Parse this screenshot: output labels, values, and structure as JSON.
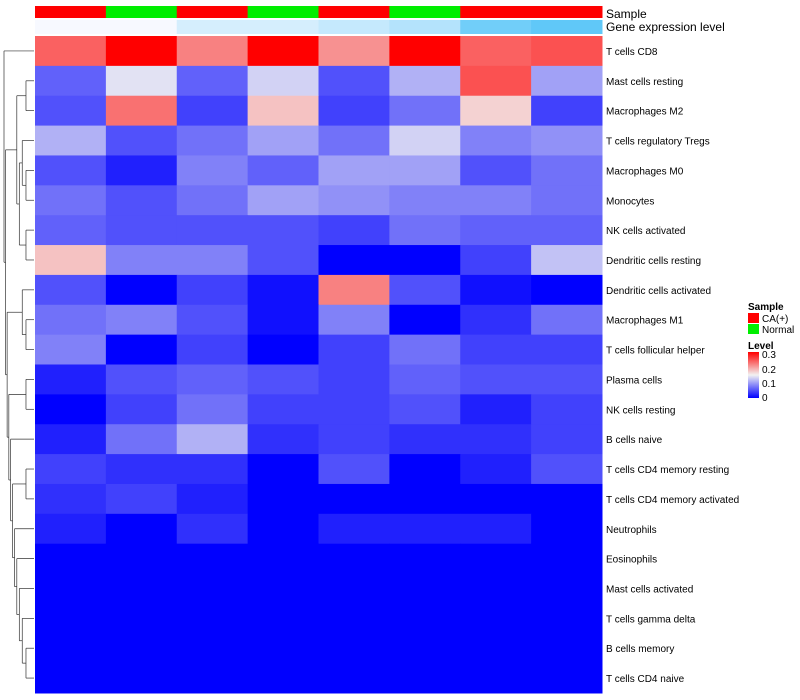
{
  "chart_data": {
    "type": "heatmap",
    "annotation_labels": [
      "Sample",
      "Gene expression level"
    ],
    "sample_groups": [
      "CA(+)",
      "Normal",
      "CA(+)",
      "Normal",
      "CA(+)",
      "Normal",
      "CA(+)",
      "CA(+)"
    ],
    "gene_expression_level": [
      0.0,
      0.0,
      0.2,
      0.2,
      0.3,
      0.4,
      0.8,
      0.9
    ],
    "rows": [
      "T cells CD8",
      "Mast cells resting",
      "Macrophages M2",
      "T cells regulatory  Tregs",
      "Macrophages M0",
      "Monocytes",
      "NK cells activated",
      "Dendritic cells resting",
      "Dendritic cells activated",
      "Macrophages M1",
      "T cells follicular helper",
      "Plasma cells",
      "NK cells resting",
      "B cells naive",
      "T cells CD4 memory resting",
      "T cells CD4 memory activated",
      "Neutrophils",
      "Eosinophils",
      "Mast cells activated",
      "T cells gamma delta",
      "B cells memory",
      "T cells CD4 naive"
    ],
    "values": [
      [
        0.24,
        0.3,
        0.22,
        0.3,
        0.21,
        0.3,
        0.24,
        0.25
      ],
      [
        0.06,
        0.14,
        0.06,
        0.13,
        0.05,
        0.11,
        0.25,
        0.1
      ],
      [
        0.05,
        0.23,
        0.04,
        0.18,
        0.04,
        0.07,
        0.17,
        0.04
      ],
      [
        0.11,
        0.05,
        0.07,
        0.1,
        0.07,
        0.13,
        0.08,
        0.09
      ],
      [
        0.05,
        0.02,
        0.08,
        0.06,
        0.1,
        0.1,
        0.05,
        0.07
      ],
      [
        0.07,
        0.05,
        0.07,
        0.1,
        0.09,
        0.08,
        0.08,
        0.07
      ],
      [
        0.06,
        0.05,
        0.05,
        0.05,
        0.04,
        0.07,
        0.06,
        0.06
      ],
      [
        0.18,
        0.08,
        0.08,
        0.05,
        0.0,
        0.0,
        0.04,
        0.12
      ],
      [
        0.05,
        0.0,
        0.04,
        0.01,
        0.22,
        0.05,
        0.01,
        0.0
      ],
      [
        0.07,
        0.08,
        0.05,
        0.01,
        0.08,
        0.0,
        0.03,
        0.07
      ],
      [
        0.08,
        0.0,
        0.04,
        0.0,
        0.04,
        0.07,
        0.04,
        0.04
      ],
      [
        0.02,
        0.05,
        0.06,
        0.05,
        0.04,
        0.06,
        0.05,
        0.05
      ],
      [
        0.0,
        0.04,
        0.07,
        0.04,
        0.04,
        0.05,
        0.02,
        0.04
      ],
      [
        0.02,
        0.07,
        0.11,
        0.03,
        0.04,
        0.03,
        0.03,
        0.04
      ],
      [
        0.04,
        0.03,
        0.03,
        0.0,
        0.05,
        0.0,
        0.02,
        0.05
      ],
      [
        0.03,
        0.04,
        0.02,
        0.0,
        0.0,
        0.0,
        0.0,
        0.0
      ],
      [
        0.02,
        0.0,
        0.03,
        0.0,
        0.02,
        0.02,
        0.02,
        0.0
      ],
      [
        0.0,
        0.0,
        0.0,
        0.0,
        0.0,
        0.0,
        0.0,
        0.0
      ],
      [
        0.0,
        0.0,
        0.0,
        0.0,
        0.0,
        0.0,
        0.0,
        0.0
      ],
      [
        0.0,
        0.0,
        0.0,
        0.0,
        0.0,
        0.0,
        0.0,
        0.0
      ],
      [
        0.0,
        0.0,
        0.0,
        0.0,
        0.0,
        0.0,
        0.0,
        0.0
      ],
      [
        0.0,
        0.0,
        0.0,
        0.0,
        0.0,
        0.0,
        0.0,
        0.0
      ]
    ],
    "color_scale": {
      "min": 0,
      "mid": 0.15,
      "max": 0.3,
      "low_color": "#0000ff",
      "mid_color": "#f2f2f2",
      "high_color": "#ff0000"
    },
    "legend": {
      "sample_title": "Sample",
      "sample_entries": [
        {
          "label": "CA(+)",
          "color": "#ff0000"
        },
        {
          "label": "Normal",
          "color": "#00ee00"
        }
      ],
      "level_title": "Level",
      "level_ticks": [
        "0.3",
        "0.2",
        "0.1",
        "0"
      ],
      "placement": "right"
    },
    "expression_colors": {
      "low": "#f7f9ff",
      "high": "#4fc3f7"
    },
    "row_dendrogram": true
  }
}
